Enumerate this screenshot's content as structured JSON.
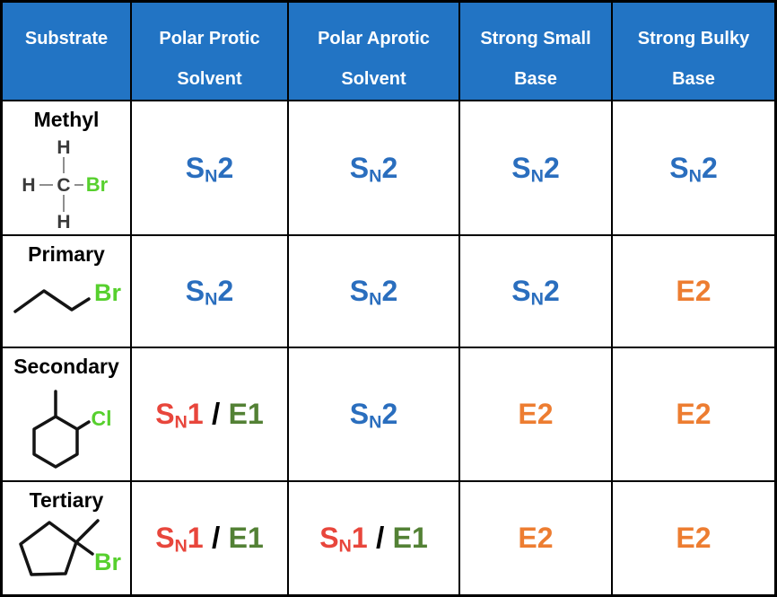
{
  "table": {
    "headers": [
      {
        "line1": "Substrate",
        "line2": ""
      },
      {
        "line1": "Polar Protic",
        "line2": "Solvent"
      },
      {
        "line1": "Polar Aprotic",
        "line2": "Solvent"
      },
      {
        "line1": "Strong Small",
        "line2": "Base"
      },
      {
        "line1": "Strong Bulky",
        "line2": "Base"
      }
    ],
    "separator": " / ",
    "rows": [
      {
        "substrate": "Methyl",
        "cells": [
          [
            "SN2"
          ],
          [
            "SN2"
          ],
          [
            "SN2"
          ],
          [
            "SN2"
          ]
        ]
      },
      {
        "substrate": "Primary",
        "cells": [
          [
            "SN2"
          ],
          [
            "SN2"
          ],
          [
            "SN2"
          ],
          [
            "E2"
          ]
        ]
      },
      {
        "substrate": "Secondary",
        "cells": [
          [
            "SN1",
            "E1"
          ],
          [
            "SN2"
          ],
          [
            "E2"
          ],
          [
            "E2"
          ]
        ]
      },
      {
        "substrate": "Tertiary",
        "cells": [
          [
            "SN1",
            "E1"
          ],
          [
            "SN1",
            "E1"
          ],
          [
            "E2"
          ],
          [
            "E2"
          ]
        ]
      }
    ]
  },
  "structures": {
    "methyl": {
      "carbon": "C",
      "hydrogen": "H",
      "halogen": "Br"
    },
    "primary": {
      "halogen": "Br"
    },
    "secondary": {
      "halogen": "Cl"
    },
    "tertiary": {
      "halogen": "Br"
    }
  },
  "colors": {
    "header_bg": "#2274c4",
    "header_text": "#ffffff",
    "sn2": "#2a6ebe",
    "sn1": "#e8463c",
    "e1": "#538135",
    "e2": "#ed7d31",
    "slash": "#000000",
    "halogen": "#57d02e",
    "border": "#000000"
  }
}
